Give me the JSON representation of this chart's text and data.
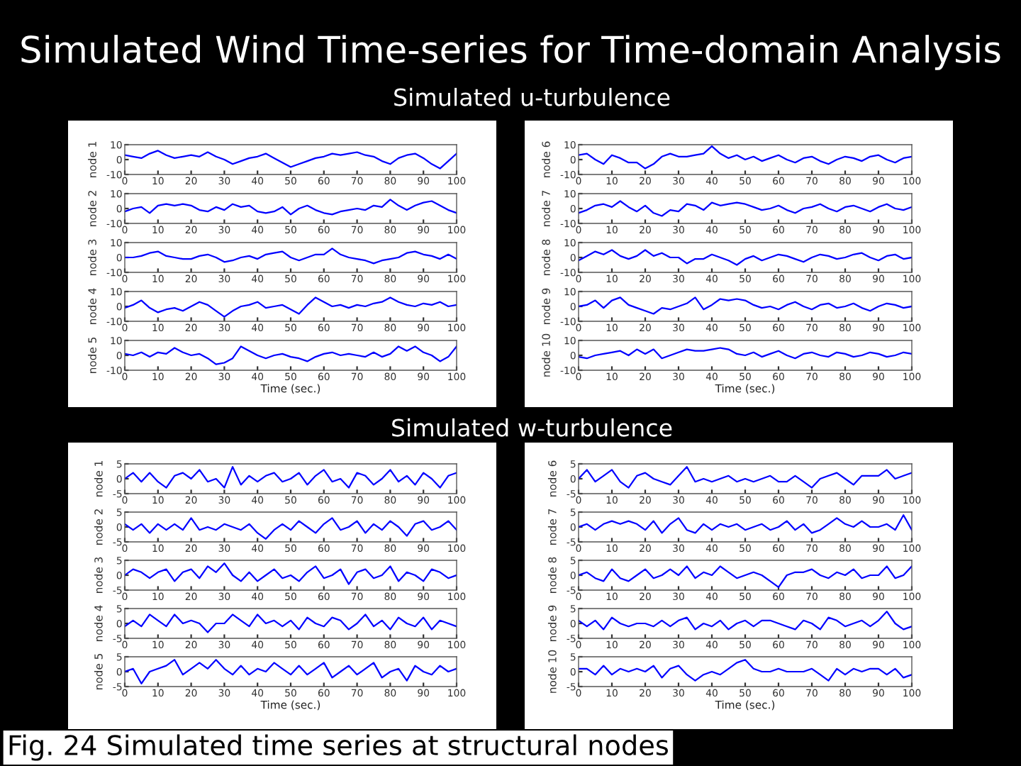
{
  "chart_data": [
    {
      "type": "line",
      "title": "Simulated Wind Time-series for Time-domain Analysis",
      "subtitle": "Simulated u-turbulence",
      "ylabel": "node 1",
      "color": "#0000ff",
      "grid": false,
      "xlim": [
        0,
        100
      ],
      "xticks": [
        0,
        10,
        20,
        30,
        40,
        50,
        60,
        70,
        80,
        90,
        100
      ],
      "ylim": [
        -10,
        10
      ],
      "yticks": [
        -10,
        0,
        10
      ],
      "x": [
        0,
        2.5,
        5,
        7.5,
        10,
        12.5,
        15,
        17.5,
        20,
        22.5,
        25,
        27.5,
        30,
        32.5,
        35,
        37.5,
        40,
        42.5,
        45,
        47.5,
        50,
        52.5,
        55,
        57.5,
        60,
        62.5,
        65,
        67.5,
        70,
        72.5,
        75,
        77.5,
        80,
        82.5,
        85,
        87.5,
        90,
        92.5,
        95,
        97.5,
        100
      ],
      "values": [
        3,
        2,
        1,
        4,
        6,
        3,
        1,
        2,
        3,
        2,
        5,
        2,
        0,
        -3,
        -1,
        1,
        2,
        4,
        1,
        -2,
        -5,
        -3,
        -1,
        1,
        2,
        4,
        3,
        4,
        5,
        3,
        2,
        -1,
        -3,
        1,
        3,
        4,
        1,
        -3,
        -6,
        -1,
        4
      ]
    },
    {
      "type": "line",
      "ylabel": "node 2",
      "color": "#0000ff",
      "grid": false,
      "xlim": [
        0,
        100
      ],
      "xticks": [
        0,
        10,
        20,
        30,
        40,
        50,
        60,
        70,
        80,
        90,
        100
      ],
      "ylim": [
        -10,
        10
      ],
      "yticks": [
        -10,
        0,
        10
      ],
      "x": [
        0,
        2.5,
        5,
        7.5,
        10,
        12.5,
        15,
        17.5,
        20,
        22.5,
        25,
        27.5,
        30,
        32.5,
        35,
        37.5,
        40,
        42.5,
        45,
        47.5,
        50,
        52.5,
        55,
        57.5,
        60,
        62.5,
        65,
        67.5,
        70,
        72.5,
        75,
        77.5,
        80,
        82.5,
        85,
        87.5,
        90,
        92.5,
        95,
        97.5,
        100
      ],
      "values": [
        -2,
        0,
        1,
        -3,
        2,
        3,
        2,
        3,
        2,
        -1,
        -2,
        1,
        -1,
        3,
        1,
        2,
        -2,
        -3,
        -2,
        1,
        -4,
        0,
        2,
        -1,
        -3,
        -4,
        -2,
        -1,
        0,
        -1,
        2,
        1,
        6,
        2,
        -1,
        2,
        4,
        5,
        2,
        -1,
        -3
      ]
    },
    {
      "type": "line",
      "ylabel": "node 3",
      "color": "#0000ff",
      "grid": false,
      "xlim": [
        0,
        100
      ],
      "xticks": [
        0,
        10,
        20,
        30,
        40,
        50,
        60,
        70,
        80,
        90,
        100
      ],
      "ylim": [
        -10,
        10
      ],
      "yticks": [
        -10,
        0,
        10
      ],
      "x": [
        0,
        2.5,
        5,
        7.5,
        10,
        12.5,
        15,
        17.5,
        20,
        22.5,
        25,
        27.5,
        30,
        32.5,
        35,
        37.5,
        40,
        42.5,
        45,
        47.5,
        50,
        52.5,
        55,
        57.5,
        60,
        62.5,
        65,
        67.5,
        70,
        72.5,
        75,
        77.5,
        80,
        82.5,
        85,
        87.5,
        90,
        92.5,
        95,
        97.5,
        100
      ],
      "values": [
        0,
        0,
        1,
        3,
        4,
        1,
        0,
        -1,
        -1,
        1,
        2,
        0,
        -3,
        -2,
        0,
        1,
        -1,
        2,
        3,
        4,
        0,
        -2,
        0,
        2,
        2,
        6,
        2,
        0,
        -1,
        -2,
        -4,
        -2,
        -1,
        0,
        3,
        4,
        2,
        1,
        -1,
        2,
        -1
      ]
    },
    {
      "type": "line",
      "ylabel": "node 4",
      "color": "#0000ff",
      "grid": false,
      "xlim": [
        0,
        100
      ],
      "xticks": [
        0,
        10,
        20,
        30,
        40,
        50,
        60,
        70,
        80,
        90,
        100
      ],
      "ylim": [
        -10,
        10
      ],
      "yticks": [
        -10,
        0,
        10
      ],
      "x": [
        0,
        2.5,
        5,
        7.5,
        10,
        12.5,
        15,
        17.5,
        20,
        22.5,
        25,
        27.5,
        30,
        32.5,
        35,
        37.5,
        40,
        42.5,
        45,
        47.5,
        50,
        52.5,
        55,
        57.5,
        60,
        62.5,
        65,
        67.5,
        70,
        72.5,
        75,
        77.5,
        80,
        82.5,
        85,
        87.5,
        90,
        92.5,
        95,
        97.5,
        100
      ],
      "values": [
        -1,
        1,
        4,
        -1,
        -4,
        -2,
        -1,
        -3,
        0,
        3,
        1,
        -3,
        -7,
        -3,
        0,
        1,
        3,
        -1,
        0,
        1,
        -2,
        -5,
        1,
        6,
        3,
        0,
        1,
        -1,
        1,
        0,
        2,
        3,
        6,
        3,
        1,
        0,
        2,
        1,
        3,
        0,
        1
      ]
    },
    {
      "type": "line",
      "ylabel": "node 5",
      "xlabel": "Time (sec.)",
      "color": "#0000ff",
      "grid": false,
      "xlim": [
        0,
        100
      ],
      "xticks": [
        0,
        10,
        20,
        30,
        40,
        50,
        60,
        70,
        80,
        90,
        100
      ],
      "ylim": [
        -10,
        10
      ],
      "yticks": [
        -10,
        0,
        10
      ],
      "x": [
        0,
        2.5,
        5,
        7.5,
        10,
        12.5,
        15,
        17.5,
        20,
        22.5,
        25,
        27.5,
        30,
        32.5,
        35,
        37.5,
        40,
        42.5,
        45,
        47.5,
        50,
        52.5,
        55,
        57.5,
        60,
        62.5,
        65,
        67.5,
        70,
        72.5,
        75,
        77.5,
        80,
        82.5,
        85,
        87.5,
        90,
        92.5,
        95,
        97.5,
        100
      ],
      "values": [
        1,
        0,
        2,
        -1,
        2,
        1,
        5,
        2,
        0,
        1,
        -2,
        -6,
        -5,
        -2,
        6,
        3,
        0,
        -2,
        0,
        1,
        -1,
        -2,
        -4,
        -1,
        1,
        2,
        0,
        1,
        0,
        -1,
        2,
        -1,
        1,
        6,
        3,
        6,
        2,
        0,
        -4,
        -1,
        6
      ]
    },
    {
      "type": "line",
      "ylabel": "node 6",
      "color": "#0000ff",
      "grid": false,
      "xlim": [
        0,
        100
      ],
      "xticks": [
        0,
        10,
        20,
        30,
        40,
        50,
        60,
        70,
        80,
        90,
        100
      ],
      "ylim": [
        -10,
        10
      ],
      "yticks": [
        -10,
        0,
        10
      ],
      "x": [
        0,
        2.5,
        5,
        7.5,
        10,
        12.5,
        15,
        17.5,
        20,
        22.5,
        25,
        27.5,
        30,
        32.5,
        35,
        37.5,
        40,
        42.5,
        45,
        47.5,
        50,
        52.5,
        55,
        57.5,
        60,
        62.5,
        65,
        67.5,
        70,
        72.5,
        75,
        77.5,
        80,
        82.5,
        85,
        87.5,
        90,
        92.5,
        95,
        97.5,
        100
      ],
      "values": [
        3,
        4,
        0,
        -3,
        3,
        1,
        -2,
        -2,
        -6,
        -3,
        2,
        4,
        2,
        2,
        3,
        4,
        9,
        4,
        1,
        3,
        0,
        2,
        -1,
        1,
        3,
        0,
        -2,
        1,
        2,
        -1,
        -3,
        0,
        2,
        1,
        -1,
        2,
        3,
        0,
        -2,
        1,
        2
      ]
    },
    {
      "type": "line",
      "ylabel": "node 7",
      "color": "#0000ff",
      "grid": false,
      "xlim": [
        0,
        100
      ],
      "xticks": [
        0,
        10,
        20,
        30,
        40,
        50,
        60,
        70,
        80,
        90,
        100
      ],
      "ylim": [
        -10,
        10
      ],
      "yticks": [
        -10,
        0,
        10
      ],
      "x": [
        0,
        2.5,
        5,
        7.5,
        10,
        12.5,
        15,
        17.5,
        20,
        22.5,
        25,
        27.5,
        30,
        32.5,
        35,
        37.5,
        40,
        42.5,
        45,
        47.5,
        50,
        52.5,
        55,
        57.5,
        60,
        62.5,
        65,
        67.5,
        70,
        72.5,
        75,
        77.5,
        80,
        82.5,
        85,
        87.5,
        90,
        92.5,
        95,
        97.5,
        100
      ],
      "values": [
        -3,
        -1,
        2,
        3,
        1,
        5,
        1,
        -2,
        2,
        -3,
        -5,
        -1,
        -2,
        3,
        2,
        -1,
        4,
        2,
        3,
        4,
        3,
        1,
        -1,
        0,
        2,
        -1,
        -3,
        0,
        1,
        3,
        0,
        -2,
        1,
        2,
        0,
        -2,
        1,
        3,
        0,
        -1,
        1
      ]
    },
    {
      "type": "line",
      "ylabel": "node 8",
      "color": "#0000ff",
      "grid": false,
      "xlim": [
        0,
        100
      ],
      "xticks": [
        0,
        10,
        20,
        30,
        40,
        50,
        60,
        70,
        80,
        90,
        100
      ],
      "ylim": [
        -10,
        10
      ],
      "yticks": [
        -10,
        0,
        10
      ],
      "x": [
        0,
        2.5,
        5,
        7.5,
        10,
        12.5,
        15,
        17.5,
        20,
        22.5,
        25,
        27.5,
        30,
        32.5,
        35,
        37.5,
        40,
        42.5,
        45,
        47.5,
        50,
        52.5,
        55,
        57.5,
        60,
        62.5,
        65,
        67.5,
        70,
        72.5,
        75,
        77.5,
        80,
        82.5,
        85,
        87.5,
        90,
        92.5,
        95,
        97.5,
        100
      ],
      "values": [
        -2,
        1,
        4,
        2,
        5,
        1,
        -1,
        1,
        5,
        1,
        3,
        0,
        0,
        -4,
        -1,
        -1,
        2,
        0,
        -2,
        -5,
        -1,
        1,
        -2,
        0,
        2,
        1,
        -1,
        -3,
        0,
        2,
        1,
        -1,
        0,
        2,
        3,
        0,
        -2,
        1,
        2,
        -1,
        0
      ]
    },
    {
      "type": "line",
      "ylabel": "node 9",
      "color": "#0000ff",
      "grid": false,
      "xlim": [
        0,
        100
      ],
      "xticks": [
        0,
        10,
        20,
        30,
        40,
        50,
        60,
        70,
        80,
        90,
        100
      ],
      "ylim": [
        -10,
        10
      ],
      "yticks": [
        -10,
        0,
        10
      ],
      "x": [
        0,
        2.5,
        5,
        7.5,
        10,
        12.5,
        15,
        17.5,
        20,
        22.5,
        25,
        27.5,
        30,
        32.5,
        35,
        37.5,
        40,
        42.5,
        45,
        47.5,
        50,
        52.5,
        55,
        57.5,
        60,
        62.5,
        65,
        67.5,
        70,
        72.5,
        75,
        77.5,
        80,
        82.5,
        85,
        87.5,
        90,
        92.5,
        95,
        97.5,
        100
      ],
      "values": [
        0,
        1,
        4,
        -1,
        4,
        6,
        1,
        -1,
        -3,
        -5,
        -1,
        -2,
        0,
        2,
        6,
        -2,
        1,
        5,
        4,
        5,
        4,
        1,
        -1,
        0,
        -2,
        1,
        3,
        0,
        -2,
        1,
        2,
        -1,
        0,
        2,
        -1,
        -3,
        0,
        2,
        1,
        -1,
        0
      ]
    },
    {
      "type": "line",
      "ylabel": "node 10",
      "xlabel": "Time (sec.)",
      "color": "#0000ff",
      "grid": false,
      "xlim": [
        0,
        100
      ],
      "xticks": [
        0,
        10,
        20,
        30,
        40,
        50,
        60,
        70,
        80,
        90,
        100
      ],
      "ylim": [
        -10,
        10
      ],
      "yticks": [
        -10,
        0,
        10
      ],
      "x": [
        0,
        2.5,
        5,
        7.5,
        10,
        12.5,
        15,
        17.5,
        20,
        22.5,
        25,
        27.5,
        30,
        32.5,
        35,
        37.5,
        40,
        42.5,
        45,
        47.5,
        50,
        52.5,
        55,
        57.5,
        60,
        62.5,
        65,
        67.5,
        70,
        72.5,
        75,
        77.5,
        80,
        82.5,
        85,
        87.5,
        90,
        92.5,
        95,
        97.5,
        100
      ],
      "values": [
        -1,
        -2,
        0,
        1,
        2,
        3,
        0,
        4,
        1,
        4,
        -2,
        0,
        2,
        4,
        3,
        3,
        4,
        5,
        4,
        1,
        0,
        2,
        -1,
        1,
        3,
        0,
        -2,
        1,
        2,
        0,
        -1,
        2,
        1,
        -1,
        0,
        2,
        1,
        -1,
        0,
        2,
        1
      ]
    },
    {
      "type": "line",
      "subtitle": "Simulated w-turbulence",
      "ylabel": "node 1",
      "color": "#0000ff",
      "grid": false,
      "xlim": [
        0,
        100
      ],
      "xticks": [
        0,
        10,
        20,
        30,
        40,
        50,
        60,
        70,
        80,
        90,
        100
      ],
      "ylim": [
        -5,
        5
      ],
      "yticks": [
        -5,
        0,
        5
      ],
      "x": [
        0,
        2.5,
        5,
        7.5,
        10,
        12.5,
        15,
        17.5,
        20,
        22.5,
        25,
        27.5,
        30,
        32.5,
        35,
        37.5,
        40,
        42.5,
        45,
        47.5,
        50,
        52.5,
        55,
        57.5,
        60,
        62.5,
        65,
        67.5,
        70,
        72.5,
        75,
        77.5,
        80,
        82.5,
        85,
        87.5,
        90,
        92.5,
        95,
        97.5,
        100
      ],
      "values": [
        0,
        2,
        -1,
        2,
        -1,
        -3,
        1,
        2,
        0,
        3,
        -1,
        0,
        -3,
        4,
        -2,
        1,
        -1,
        1,
        2,
        -1,
        0,
        2,
        -2,
        1,
        3,
        -1,
        0,
        -3,
        2,
        1,
        -2,
        0,
        3,
        -1,
        1,
        -2,
        2,
        0,
        -3,
        1,
        2
      ]
    },
    {
      "type": "line",
      "ylabel": "node 2",
      "color": "#0000ff",
      "grid": false,
      "xlim": [
        0,
        100
      ],
      "xticks": [
        0,
        10,
        20,
        30,
        40,
        50,
        60,
        70,
        80,
        90,
        100
      ],
      "ylim": [
        -5,
        5
      ],
      "yticks": [
        -5,
        0,
        5
      ],
      "x": [
        0,
        2.5,
        5,
        7.5,
        10,
        12.5,
        15,
        17.5,
        20,
        22.5,
        25,
        27.5,
        30,
        32.5,
        35,
        37.5,
        40,
        42.5,
        45,
        47.5,
        50,
        52.5,
        55,
        57.5,
        60,
        62.5,
        65,
        67.5,
        70,
        72.5,
        75,
        77.5,
        80,
        82.5,
        85,
        87.5,
        90,
        92.5,
        95,
        97.5,
        100
      ],
      "values": [
        1,
        -1,
        1,
        -2,
        1,
        -1,
        1,
        -1,
        3,
        -1,
        0,
        -1,
        1,
        0,
        -1,
        1,
        -2,
        -4,
        -1,
        1,
        -1,
        2,
        0,
        -2,
        1,
        3,
        -1,
        0,
        2,
        -2,
        1,
        -1,
        2,
        0,
        -3,
        1,
        2,
        -1,
        0,
        2,
        -1
      ]
    },
    {
      "type": "line",
      "ylabel": "node 3",
      "color": "#0000ff",
      "grid": false,
      "xlim": [
        0,
        100
      ],
      "xticks": [
        0,
        10,
        20,
        30,
        40,
        50,
        60,
        70,
        80,
        90,
        100
      ],
      "ylim": [
        -5,
        5
      ],
      "yticks": [
        -5,
        0,
        5
      ],
      "x": [
        0,
        2.5,
        5,
        7.5,
        10,
        12.5,
        15,
        17.5,
        20,
        22.5,
        25,
        27.5,
        30,
        32.5,
        35,
        37.5,
        40,
        42.5,
        45,
        47.5,
        50,
        52.5,
        55,
        57.5,
        60,
        62.5,
        65,
        67.5,
        70,
        72.5,
        75,
        77.5,
        80,
        82.5,
        85,
        87.5,
        90,
        92.5,
        95,
        97.5,
        100
      ],
      "values": [
        0,
        2,
        1,
        -1,
        1,
        2,
        -2,
        1,
        2,
        -1,
        3,
        1,
        4,
        0,
        -2,
        1,
        -2,
        0,
        2,
        -1,
        0,
        -2,
        1,
        3,
        -1,
        0,
        2,
        -3,
        1,
        2,
        -1,
        0,
        3,
        -2,
        1,
        0,
        -2,
        2,
        1,
        -1,
        0
      ]
    },
    {
      "type": "line",
      "ylabel": "node 4",
      "color": "#0000ff",
      "grid": false,
      "xlim": [
        0,
        100
      ],
      "xticks": [
        0,
        10,
        20,
        30,
        40,
        50,
        60,
        70,
        80,
        90,
        100
      ],
      "ylim": [
        -5,
        5
      ],
      "yticks": [
        -5,
        0,
        5
      ],
      "x": [
        0,
        2.5,
        5,
        7.5,
        10,
        12.5,
        15,
        17.5,
        20,
        22.5,
        25,
        27.5,
        30,
        32.5,
        35,
        37.5,
        40,
        42.5,
        45,
        47.5,
        50,
        52.5,
        55,
        57.5,
        60,
        62.5,
        65,
        67.5,
        70,
        72.5,
        75,
        77.5,
        80,
        82.5,
        85,
        87.5,
        90,
        92.5,
        95,
        97.5,
        100
      ],
      "values": [
        -1,
        1,
        -1,
        3,
        1,
        -1,
        3,
        0,
        1,
        0,
        -3,
        0,
        0,
        3,
        1,
        -1,
        3,
        0,
        1,
        -1,
        1,
        -2,
        2,
        0,
        -1,
        2,
        1,
        -2,
        0,
        3,
        -1,
        1,
        -2,
        2,
        0,
        -1,
        2,
        -2,
        1,
        0,
        -1
      ]
    },
    {
      "type": "line",
      "ylabel": "node 5",
      "xlabel": "Time (sec.)",
      "color": "#0000ff",
      "grid": false,
      "xlim": [
        0,
        100
      ],
      "xticks": [
        0,
        10,
        20,
        30,
        40,
        50,
        60,
        70,
        80,
        90,
        100
      ],
      "ylim": [
        -5,
        5
      ],
      "yticks": [
        -5,
        0,
        5
      ],
      "x": [
        0,
        2.5,
        5,
        7.5,
        10,
        12.5,
        15,
        17.5,
        20,
        22.5,
        25,
        27.5,
        30,
        32.5,
        35,
        37.5,
        40,
        42.5,
        45,
        47.5,
        50,
        52.5,
        55,
        57.5,
        60,
        62.5,
        65,
        67.5,
        70,
        72.5,
        75,
        77.5,
        80,
        82.5,
        85,
        87.5,
        90,
        92.5,
        95,
        97.5,
        100
      ],
      "values": [
        0,
        1,
        -4,
        0,
        1,
        2,
        4,
        -1,
        1,
        3,
        1,
        4,
        1,
        -1,
        2,
        -1,
        1,
        0,
        3,
        1,
        -1,
        2,
        -1,
        1,
        3,
        -2,
        0,
        2,
        -1,
        1,
        3,
        -2,
        0,
        1,
        -3,
        2,
        0,
        -1,
        2,
        0,
        1
      ]
    },
    {
      "type": "line",
      "ylabel": "node 6",
      "color": "#0000ff",
      "grid": false,
      "xlim": [
        0,
        100
      ],
      "xticks": [
        0,
        10,
        20,
        30,
        40,
        50,
        60,
        70,
        80,
        90,
        100
      ],
      "ylim": [
        -5,
        5
      ],
      "yticks": [
        -5,
        0,
        5
      ],
      "x": [
        0,
        2.5,
        5,
        7.5,
        10,
        12.5,
        15,
        17.5,
        20,
        22.5,
        25,
        27.5,
        30,
        32.5,
        35,
        37.5,
        40,
        42.5,
        45,
        47.5,
        50,
        52.5,
        55,
        57.5,
        60,
        62.5,
        65,
        67.5,
        70,
        72.5,
        75,
        77.5,
        80,
        82.5,
        85,
        87.5,
        90,
        92.5,
        95,
        97.5,
        100
      ],
      "values": [
        0,
        3,
        -1,
        1,
        3,
        -1,
        -3,
        1,
        2,
        0,
        -1,
        -2,
        1,
        4,
        -1,
        0,
        -1,
        0,
        1,
        -1,
        0,
        -1,
        0,
        1,
        -1,
        -1,
        1,
        -1,
        -3,
        0,
        1,
        2,
        0,
        -2,
        1,
        1,
        1,
        3,
        0,
        1,
        2
      ]
    },
    {
      "type": "line",
      "ylabel": "node 7",
      "color": "#0000ff",
      "grid": false,
      "xlim": [
        0,
        100
      ],
      "xticks": [
        0,
        10,
        20,
        30,
        40,
        50,
        60,
        70,
        80,
        90,
        100
      ],
      "ylim": [
        -5,
        5
      ],
      "yticks": [
        -5,
        0,
        5
      ],
      "x": [
        0,
        2.5,
        5,
        7.5,
        10,
        12.5,
        15,
        17.5,
        20,
        22.5,
        25,
        27.5,
        30,
        32.5,
        35,
        37.5,
        40,
        42.5,
        45,
        47.5,
        50,
        52.5,
        55,
        57.5,
        60,
        62.5,
        65,
        67.5,
        70,
        72.5,
        75,
        77.5,
        80,
        82.5,
        85,
        87.5,
        90,
        92.5,
        95,
        97.5,
        100
      ],
      "values": [
        0,
        1,
        -1,
        1,
        2,
        1,
        2,
        1,
        -1,
        2,
        -2,
        1,
        3,
        -1,
        -2,
        1,
        -1,
        1,
        0,
        1,
        -1,
        0,
        1,
        -1,
        0,
        2,
        -1,
        1,
        -2,
        -1,
        1,
        3,
        1,
        0,
        2,
        0,
        0,
        1,
        -1,
        4,
        -1
      ]
    },
    {
      "type": "line",
      "ylabel": "node 8",
      "color": "#0000ff",
      "grid": false,
      "xlim": [
        0,
        100
      ],
      "xticks": [
        0,
        10,
        20,
        30,
        40,
        50,
        60,
        70,
        80,
        90,
        100
      ],
      "ylim": [
        -5,
        5
      ],
      "yticks": [
        -5,
        0,
        5
      ],
      "x": [
        0,
        2.5,
        5,
        7.5,
        10,
        12.5,
        15,
        17.5,
        20,
        22.5,
        25,
        27.5,
        30,
        32.5,
        35,
        37.5,
        40,
        42.5,
        45,
        47.5,
        50,
        52.5,
        55,
        57.5,
        60,
        62.5,
        65,
        67.5,
        70,
        72.5,
        75,
        77.5,
        80,
        82.5,
        85,
        87.5,
        90,
        92.5,
        95,
        97.5,
        100
      ],
      "values": [
        0,
        1,
        -1,
        -2,
        2,
        -1,
        -2,
        0,
        2,
        -1,
        0,
        2,
        0,
        3,
        -1,
        1,
        0,
        3,
        1,
        -1,
        0,
        1,
        0,
        -2,
        -4,
        0,
        1,
        1,
        2,
        0,
        -1,
        1,
        0,
        2,
        -1,
        0,
        0,
        3,
        -1,
        0,
        3
      ]
    },
    {
      "type": "line",
      "ylabel": "node 9",
      "color": "#0000ff",
      "grid": false,
      "xlim": [
        0,
        100
      ],
      "xticks": [
        0,
        10,
        20,
        30,
        40,
        50,
        60,
        70,
        80,
        90,
        100
      ],
      "ylim": [
        -5,
        5
      ],
      "yticks": [
        -5,
        0,
        5
      ],
      "x": [
        0,
        2.5,
        5,
        7.5,
        10,
        12.5,
        15,
        17.5,
        20,
        22.5,
        25,
        27.5,
        30,
        32.5,
        35,
        37.5,
        40,
        42.5,
        45,
        47.5,
        50,
        52.5,
        55,
        57.5,
        60,
        62.5,
        65,
        67.5,
        70,
        72.5,
        75,
        77.5,
        80,
        82.5,
        85,
        87.5,
        90,
        92.5,
        95,
        97.5,
        100
      ],
      "values": [
        1,
        -1,
        1,
        -2,
        2,
        0,
        -1,
        0,
        0,
        -1,
        1,
        -1,
        1,
        2,
        -2,
        0,
        -1,
        1,
        -2,
        0,
        1,
        -1,
        1,
        1,
        0,
        -1,
        -2,
        1,
        0,
        -2,
        2,
        1,
        -1,
        0,
        1,
        -1,
        1,
        4,
        0,
        -2,
        -1
      ]
    },
    {
      "type": "line",
      "ylabel": "node 10",
      "xlabel": "Time (sec.)",
      "annotations": [
        "Fig. 24 Simulated time series at structural nodes"
      ],
      "color": "#0000ff",
      "grid": false,
      "xlim": [
        0,
        100
      ],
      "xticks": [
        0,
        10,
        20,
        30,
        40,
        50,
        60,
        70,
        80,
        90,
        100
      ],
      "ylim": [
        -5,
        5
      ],
      "yticks": [
        -5,
        0,
        5
      ],
      "x": [
        0,
        2.5,
        5,
        7.5,
        10,
        12.5,
        15,
        17.5,
        20,
        22.5,
        25,
        27.5,
        30,
        32.5,
        35,
        37.5,
        40,
        42.5,
        45,
        47.5,
        50,
        52.5,
        55,
        57.5,
        60,
        62.5,
        65,
        67.5,
        70,
        72.5,
        75,
        77.5,
        80,
        82.5,
        85,
        87.5,
        90,
        92.5,
        95,
        97.5,
        100
      ],
      "values": [
        1,
        1,
        -1,
        2,
        -1,
        1,
        0,
        1,
        0,
        2,
        -2,
        1,
        2,
        -1,
        -3,
        -1,
        0,
        -1,
        1,
        3,
        4,
        1,
        0,
        0,
        1,
        0,
        0,
        0,
        1,
        -1,
        -3,
        1,
        -1,
        1,
        0,
        1,
        1,
        -1,
        1,
        -2,
        -1
      ]
    }
  ]
}
